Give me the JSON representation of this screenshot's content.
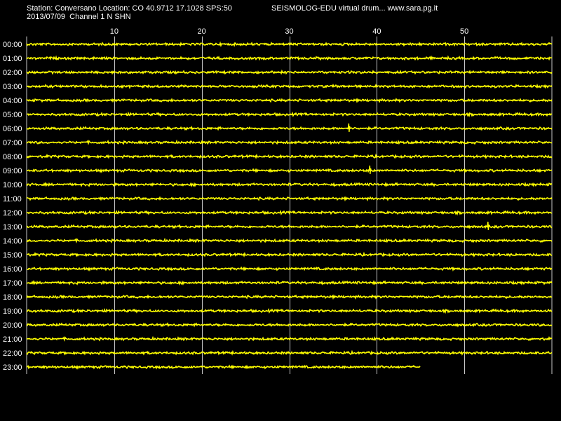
{
  "header": {
    "station_line": "Station: Conversano Location: CO 40.9712 17.1028 SPS:50",
    "date_line": "2013/07/09  Channel 1 N SHN",
    "app_title": "SEISMOLOG-EDU virtual drum... www.sara.pg.it"
  },
  "colors": {
    "background": "#000000",
    "trace": "#ffff00",
    "grid": "#c8c8c8",
    "text": "#ffffff"
  },
  "chart_data": {
    "type": "line",
    "title": "",
    "xlabel": "",
    "ylabel": "",
    "xlim": [
      0,
      60
    ],
    "x_ticks": [
      10,
      20,
      30,
      40,
      50
    ],
    "x_tick_labels": [
      "10",
      "20",
      "30",
      "40",
      "50"
    ],
    "grid": true,
    "rows": [
      "00:00",
      "01:00",
      "02:00",
      "03:00",
      "04:00",
      "05:00",
      "06:00",
      "07:00",
      "08:00",
      "09:00",
      "10:00",
      "11:00",
      "12:00",
      "13:00",
      "14:00",
      "15:00",
      "16:00",
      "17:00",
      "18:00",
      "19:00",
      "20:00",
      "21:00",
      "22:00",
      "23:00"
    ],
    "last_row_end_minute": 45,
    "events": [
      {
        "row": "06:00",
        "minute": 36.8
      },
      {
        "row": "09:00",
        "minute": 39.2
      },
      {
        "row": "13:00",
        "minute": 52.7
      }
    ]
  }
}
